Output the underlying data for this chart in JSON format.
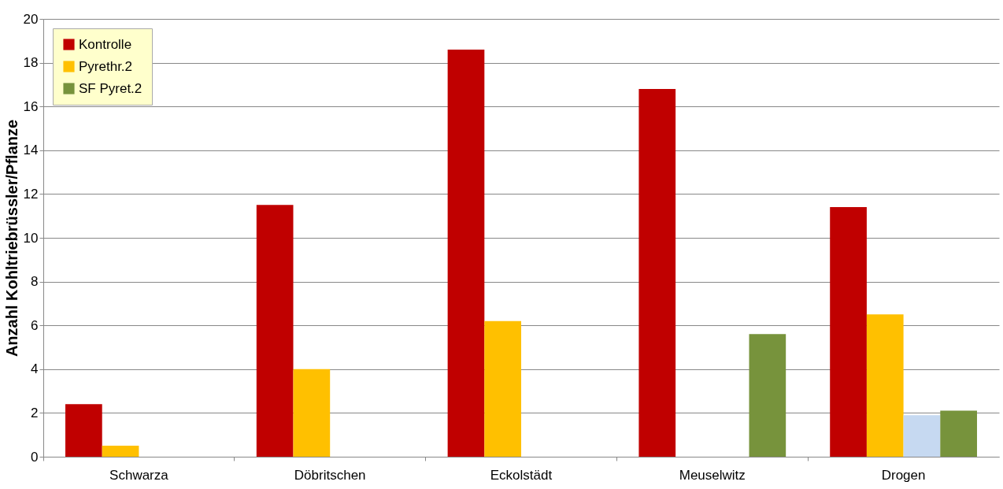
{
  "chart_data": {
    "type": "bar",
    "ylabel": "Anzahl Kohltriebrüssler/Pflanze",
    "categories": [
      "Schwarza",
      "Döbritschen",
      "Eckolstädt",
      "Meuselwitz",
      "Drogen"
    ],
    "series": [
      {
        "name": "Kontrolle",
        "color": "#c00000",
        "values": [
          2.4,
          11.5,
          18.6,
          16.8,
          11.4
        ]
      },
      {
        "name": "Pyrethr.2",
        "color": "#ffc000",
        "values": [
          0.5,
          4.0,
          6.2,
          null,
          6.5
        ]
      },
      {
        "color": "#c6d9f1",
        "values": [
          null,
          null,
          null,
          null,
          1.9
        ]
      },
      {
        "name": "SF Pyret.2",
        "color": "#77933c",
        "values": [
          null,
          null,
          null,
          5.6,
          2.1
        ]
      }
    ],
    "ylim": [
      0,
      20
    ],
    "yticks": [
      0,
      2,
      4,
      6,
      8,
      10,
      12,
      14,
      16,
      18,
      20
    ],
    "grid": "y",
    "legend": "top left"
  }
}
